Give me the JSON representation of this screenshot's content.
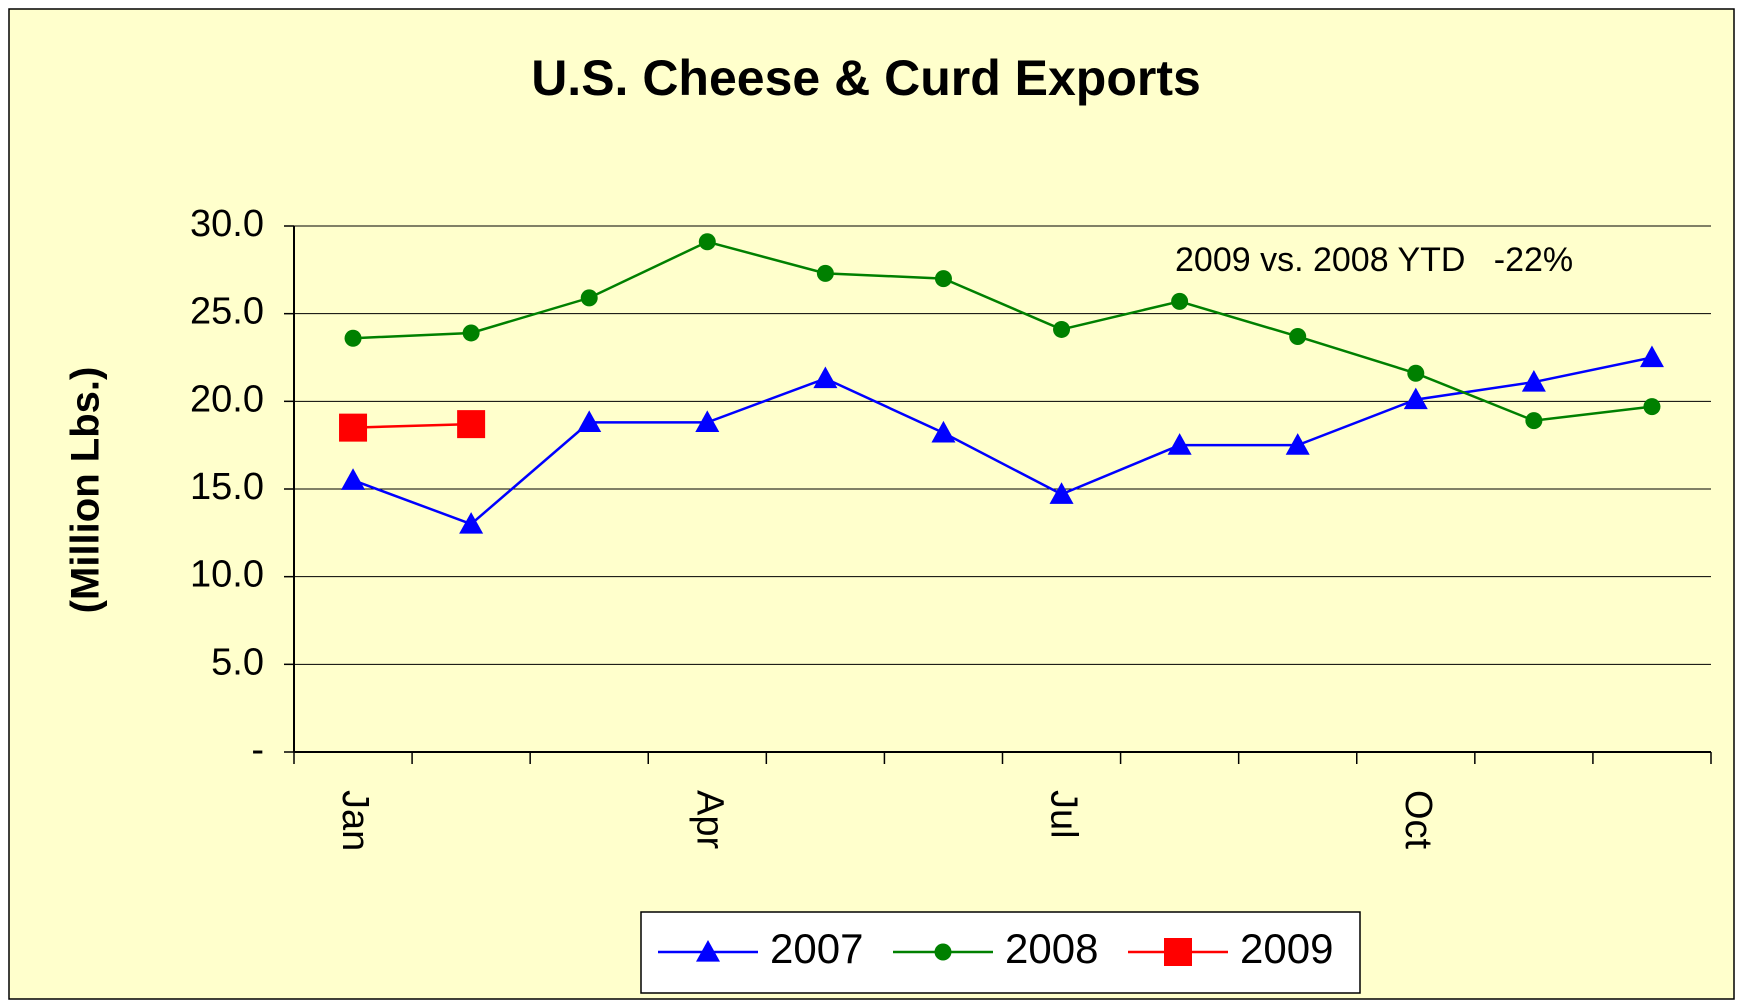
{
  "chart_data": {
    "type": "line",
    "title": "U.S. Cheese & Curd Exports",
    "y_label": "(Million Lbs.)",
    "annotation": "2009 vs. 2008 YTD   -22%",
    "categories": [
      "Jan",
      null,
      null,
      "Apr",
      null,
      null,
      "Jul",
      null,
      null,
      "Oct",
      null,
      null
    ],
    "series": [
      {
        "name": "2007",
        "color": "#0000ff",
        "marker": "triangle",
        "values": [
          15.5,
          13.0,
          18.8,
          18.8,
          21.3,
          18.2,
          14.7,
          17.5,
          17.5,
          20.1,
          21.1,
          22.5
        ]
      },
      {
        "name": "2008",
        "color": "#008000",
        "marker": "circle",
        "values": [
          23.6,
          23.9,
          25.9,
          29.1,
          27.3,
          27.0,
          24.1,
          25.7,
          23.7,
          21.6,
          18.9,
          19.7
        ]
      },
      {
        "name": "2009",
        "color": "#ff0000",
        "marker": "square",
        "values": [
          18.5,
          18.7,
          null,
          null,
          null,
          null,
          null,
          null,
          null,
          null,
          null,
          null
        ]
      }
    ],
    "ylim": [
      0,
      30
    ],
    "yticks": [
      {
        "value": 0,
        "label": "-"
      },
      {
        "value": 5,
        "label": "5.0"
      },
      {
        "value": 10,
        "label": "10.0"
      },
      {
        "value": 15,
        "label": "15.0"
      },
      {
        "value": 20,
        "label": "20.0"
      },
      {
        "value": 25,
        "label": "25.0"
      },
      {
        "value": 30,
        "label": "30.0"
      }
    ],
    "grid": true,
    "legend": "bottom"
  }
}
